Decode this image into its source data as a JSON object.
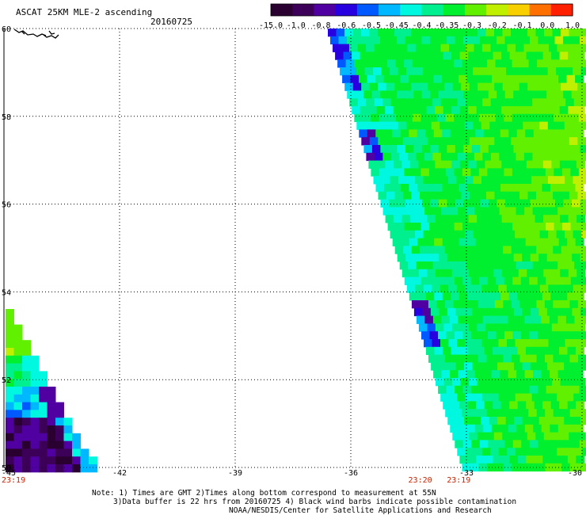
{
  "header": {
    "title": "ASCAT 25KM MLE-2 ascending",
    "date": "20160725"
  },
  "colorbar": {
    "labels": [
      "-15.0",
      "-1.0",
      "-0.8",
      "-0.6",
      "-0.5",
      "-0.45",
      "-0.4",
      "-0.35",
      "-0.3",
      "-0.2",
      "-0.1",
      "0.0",
      "1.0"
    ],
    "colors": [
      "#2a0030",
      "#3c0058",
      "#5000a0",
      "#2800e0",
      "#0058ff",
      "#00b8ff",
      "#00f8e0",
      "#00f090",
      "#00f030",
      "#60f000",
      "#c0f000",
      "#f8d000",
      "#ff7000",
      "#ff2000"
    ]
  },
  "chart_data": {
    "type": "heatmap",
    "title": "ASCAT 25KM MLE-2 ascending",
    "date": "20160725",
    "xlim": [
      -45,
      -30
    ],
    "ylim": [
      50,
      60
    ],
    "x_ticks": [
      "-45",
      "-42",
      "-39",
      "-36",
      "-33",
      "-30"
    ],
    "y_ticks": [
      "50",
      "52",
      "54",
      "56",
      "58",
      "60"
    ],
    "grid": true,
    "colorbar_thresholds": [
      -15.0,
      -1.0,
      -0.8,
      -0.6,
      -0.5,
      -0.45,
      -0.4,
      -0.35,
      -0.3,
      -0.2,
      -0.1,
      0.0,
      1.0
    ],
    "swaths": [
      {
        "region": "east swath (roughly -36 to -30 lon, 50 to 60 lat)",
        "dominant_range": "-0.35 to -0.2",
        "low_edge_values": "-1.0 to -0.6 along western edge near 57.5 and 53.5"
      },
      {
        "region": "west swath corner (roughly -45 to -42.5 lon, 50 to 54 lat)",
        "dominant_range": "-15.0 to -0.6 near bottom, -0.35 toward top"
      }
    ],
    "time_labels": [
      {
        "text": "23:19",
        "lon": -45
      },
      {
        "text": "23:20",
        "lon": -34.2
      },
      {
        "text": "23:19",
        "lon": -33.2
      }
    ]
  },
  "notes": {
    "line1": "Note: 1) Times are GMT 2)Times along bottom correspond to measurement at 55N",
    "line2": "3)Data buffer is 22 hrs from 20160725 4) Black wind barbs indicate possible contamination",
    "line3": "NOAA/NESDIS/Center for Satellite Applications and Research"
  },
  "colors": {
    "time_label": "#cc2200",
    "grid": "#000000",
    "background": "#ffffff"
  }
}
